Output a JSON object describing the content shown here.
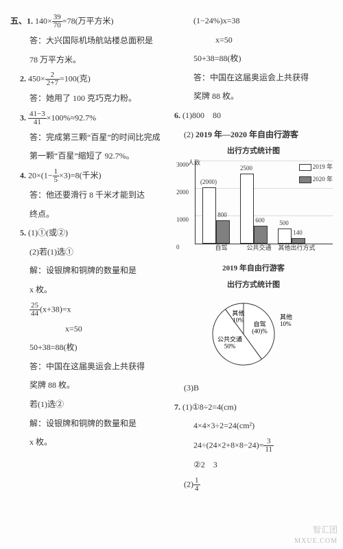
{
  "section_label": "五、",
  "left": {
    "q1": {
      "num": "五、1.",
      "line": "140×",
      "frac_num": "39",
      "frac_den": "70",
      "tail": "=78(万平方米)",
      "ans1": "答：大兴国际机场航站楼总面积是",
      "ans2": "78 万平方米。"
    },
    "q2": {
      "num": "2.",
      "line": "450×",
      "frac_num": "2",
      "frac_den": "2+7",
      "tail": "=100(克)",
      "ans": "答：她用了 100 克巧克力粉。"
    },
    "q3": {
      "num": "3.",
      "frac_num": "41−3",
      "frac_den": "41",
      "tail": "×100%≈92.7%",
      "ans1": "答：完成第三颗“百星”的时间比完成",
      "ans2": "第一颗“百星”缩短了 92.7%。"
    },
    "q4": {
      "num": "4.",
      "line": "20×(1−",
      "frac_num": "1",
      "frac_den": "5",
      "tail": "×3)=8(千米)",
      "ans1": "答：他还要滑行 8 千米才能到达",
      "ans2": "终点。"
    },
    "q5": {
      "num": "5.",
      "part1": "(1)①(或②)",
      "part2": "(2)若(1)选①",
      "solve": "解：设银牌和铜牌的数量和是",
      "solve2": "x 枚。",
      "eq_frac_num": "25",
      "eq_frac_den": "44",
      "eq_tail": "(x+38)=x",
      "eq_res": "x=50",
      "sum": "50+38=88(枚)",
      "ans1": "答：中国在这届奥运会上共获得",
      "ans2": "奖牌 88 枚。",
      "alt": "若(1)选②",
      "alt_solve": "解：设银牌和铜牌的数量和是",
      "alt_solve2": "x 枚。"
    }
  },
  "right": {
    "cont": {
      "eq1": "(1−24%)x=38",
      "eq2": "x=50",
      "sum": "50+38=88(枚)",
      "ans1": "答：中国在这届奥运会上共获得",
      "ans2": "奖牌 88 枚。"
    },
    "q6": {
      "num": "6.",
      "part1": "(1)800　80",
      "part2": "(2)",
      "bar_title1": "2019 年—2020 年自由行游客",
      "bar_title2": "出行方式统计图",
      "y_label": "人数",
      "bar_chart": {
        "type": "bar",
        "ylim": [
          0,
          3000
        ],
        "categories": [
          "自驾",
          "公共交通",
          "其他出行方式"
        ],
        "series": [
          {
            "name": "2019 年",
            "color": "#ffffff",
            "values": [
              2000,
              2500,
              500
            ]
          },
          {
            "name": "2020 年",
            "color": "#808080",
            "values": [
              800,
              600,
              140
            ]
          }
        ],
        "legend_pos": "top-right",
        "grid_color": "#cccccc",
        "value_labels": [
          "(2000)",
          "800",
          "2500",
          "600",
          "500",
          "140"
        ]
      },
      "pie_title1": "2019 年自由行游客",
      "pie_title2": "出行方式统计图",
      "pie_chart": {
        "type": "pie",
        "slices": [
          {
            "label": "自驾",
            "pct": 40,
            "display": "(40)%",
            "color": "#ffffff"
          },
          {
            "label": "公共交通",
            "pct": 50,
            "display": "50%",
            "color": "#ffffff"
          },
          {
            "label": "其他",
            "pct": 10,
            "display": "10%",
            "color": "#ffffff"
          }
        ],
        "stroke": "#333333"
      },
      "part3": "(3)B"
    },
    "q7": {
      "num": "7.",
      "line1": "(1)①8÷2=4(cm)",
      "line2": "4×4×3÷2=24(cm²)",
      "line3_pre": "24÷(24×2+8×8−24)=",
      "line3_frac_num": "3",
      "line3_frac_den": "11",
      "line4": "②2　3",
      "line5": "(2)",
      "line5_frac_num": "1",
      "line5_frac_den": "4"
    }
  },
  "watermark": "MXUE.COM",
  "watermark2": "智汇团"
}
